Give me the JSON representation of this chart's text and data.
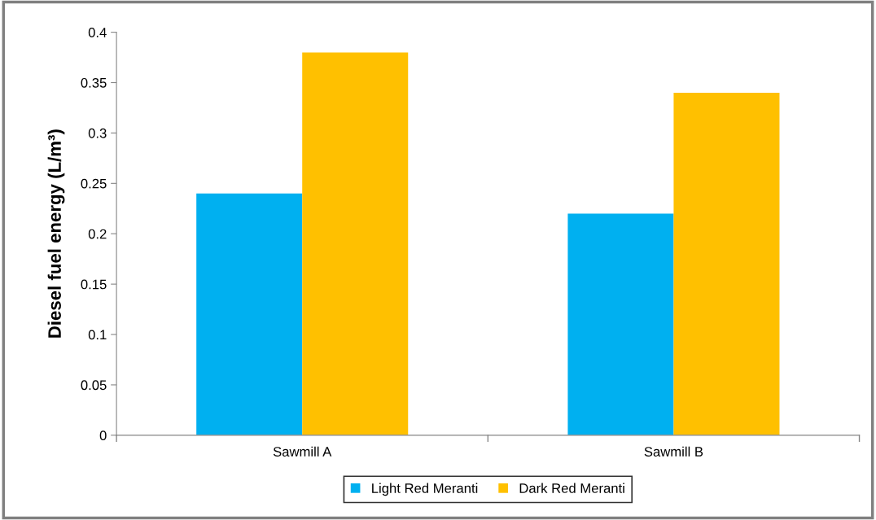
{
  "chart_data": {
    "type": "bar",
    "ylabel": "Diesel fuel energy (L/m³)",
    "categories": [
      "Sawmill A",
      "Sawmill B"
    ],
    "series": [
      {
        "name": "Light Red Meranti",
        "color": "#00b0f0",
        "values": [
          0.24,
          0.22
        ]
      },
      {
        "name": "Dark Red Meranti",
        "color": "#ffc000",
        "values": [
          0.38,
          0.34
        ]
      }
    ],
    "ylim": [
      0,
      0.4
    ],
    "yticks": [
      0,
      0.05,
      0.1,
      0.15,
      0.2,
      0.25,
      0.3,
      0.35,
      0.4
    ],
    "grid": false,
    "legend": "bottom"
  }
}
